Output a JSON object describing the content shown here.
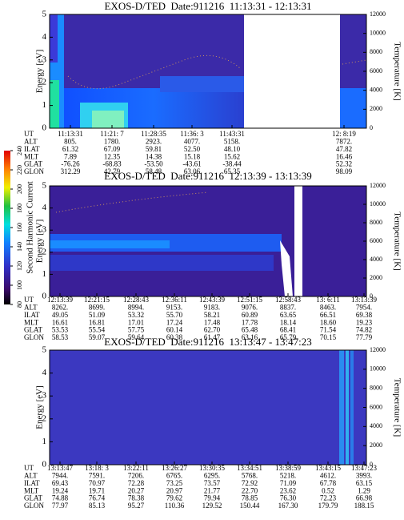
{
  "chart_data": [
    {
      "type": "spectrogram",
      "title": "EXOS-D/TED  Date:911216  11:13:31 - 12:13:31",
      "ylabel": "Energy [eV]",
      "y2label": "Temperature [K]",
      "ylim": [
        0,
        5
      ],
      "yticks": [
        0,
        1,
        2,
        3,
        4,
        5
      ],
      "y2lim": [
        0,
        12000
      ],
      "y2ticks": [
        0,
        2000,
        4000,
        6000,
        8000,
        10000,
        12000
      ],
      "ephemeris": {
        "rows": [
          "UT",
          "ALT",
          "ILAT",
          "MLT",
          "GLAT",
          "GLON"
        ],
        "columns": [
          [
            "11:13:31",
            "805.",
            "61.32",
            "7.89",
            "-76.26",
            "312.29"
          ],
          [
            "11:21: 7",
            "1780.",
            "67.09",
            "12.35",
            "-68.83",
            "42.79"
          ],
          [
            "11:28:35",
            "2923.",
            "59.81",
            "14.38",
            "-53.50",
            "58.48"
          ],
          [
            "11:36: 3",
            "4077.",
            "52.50",
            "15.18",
            "-43.61",
            "63.06"
          ],
          [
            "11:43:31",
            "5158.",
            "48.10",
            "15.62",
            "-38.44",
            "65.35"
          ],
          [
            "12: 8:19",
            "7872.",
            "47.82",
            "16.46",
            "52.32",
            "98.09"
          ]
        ]
      }
    },
    {
      "type": "spectrogram",
      "title": "EXOS-D/TED  Date:911216  12:13:39 - 13:13:39",
      "ylabel": "Energy [eV]",
      "y2label": "Temperature [K]",
      "ylim": [
        0,
        5
      ],
      "yticks": [
        0,
        1,
        2,
        3,
        4,
        5
      ],
      "y2lim": [
        0,
        12000
      ],
      "y2ticks": [
        0,
        2000,
        4000,
        6000,
        8000,
        10000,
        12000
      ],
      "ephemeris": {
        "rows": [
          "UT",
          "ALT",
          "ILAT",
          "MLT",
          "GLAT",
          "GLON"
        ],
        "columns": [
          [
            "12:13:39",
            "8262.",
            "49.05",
            "16.61",
            "53.53",
            "58.53"
          ],
          [
            "12:21:15",
            "8699.",
            "51.09",
            "16.81",
            "55.54",
            "59.07"
          ],
          [
            "12:28:43",
            "8994.",
            "53.32",
            "17.01",
            "57.75",
            "59.64"
          ],
          [
            "12:36:11",
            "9153.",
            "55.70",
            "17.24",
            "60.14",
            "60.38"
          ],
          [
            "12:43:39",
            "9183.",
            "58.21",
            "17.48",
            "62.70",
            "61.47"
          ],
          [
            "12:51:15",
            "9076.",
            "60.89",
            "17.78",
            "65.48",
            "63.16"
          ],
          [
            "12:58:43",
            "8837.",
            "63.65",
            "18.14",
            "68.41",
            "65.79"
          ],
          [
            "13: 6:11",
            "8463.",
            "66.51",
            "18.60",
            "71.54",
            "70.15"
          ],
          [
            "13:13:39",
            "7954.",
            "69.38",
            "19.23",
            "74.82",
            "77.79"
          ]
        ]
      }
    },
    {
      "type": "spectrogram",
      "title": "EXOS-D/TED  Date:911216  13:13:47 - 13:47:23",
      "ylabel": "Energy [eV]",
      "y2label": "Temperature [K]",
      "ylim": [
        0,
        5
      ],
      "yticks": [
        0,
        1,
        2,
        3,
        4,
        5
      ],
      "y2lim": [
        0,
        12000
      ],
      "y2ticks": [
        0,
        2000,
        4000,
        6000,
        8000,
        10000,
        12000
      ],
      "ephemeris": {
        "rows": [
          "UT",
          "ALT",
          "ILAT",
          "MLT",
          "GLAT",
          "GLON"
        ],
        "columns": [
          [
            "13:13:47",
            "7944.",
            "69.43",
            "19.24",
            "74.88",
            "77.97"
          ],
          [
            "13:18: 3",
            "7591.",
            "70.97",
            "19.71",
            "76.74",
            "85.13"
          ],
          [
            "13:22:11",
            "7206.",
            "72.28",
            "20.27",
            "78.38",
            "95.27"
          ],
          [
            "13:26:27",
            "6765.",
            "73.25",
            "20.97",
            "79.62",
            "110.36"
          ],
          [
            "13:30:35",
            "6295.",
            "73.57",
            "21.77",
            "79.94",
            "129.52"
          ],
          [
            "13:34:51",
            "5768.",
            "72.92",
            "22.70",
            "78.85",
            "150.44"
          ],
          [
            "13:38:59",
            "5218.",
            "71.09",
            "23.62",
            "76.30",
            "167.30"
          ],
          [
            "13:43:15",
            "4612.",
            "67.78",
            "0.52",
            "72.23",
            "179.79"
          ],
          [
            "13:47:23",
            "3993.",
            "63.15",
            "1.29",
            "66.98",
            "188.15"
          ]
        ]
      }
    }
  ],
  "colorbar": {
    "label": "Second Harmonic Current",
    "lim": [
      80,
      240
    ],
    "ticks": [
      80,
      100,
      120,
      140,
      160,
      180,
      200,
      220,
      240
    ]
  }
}
